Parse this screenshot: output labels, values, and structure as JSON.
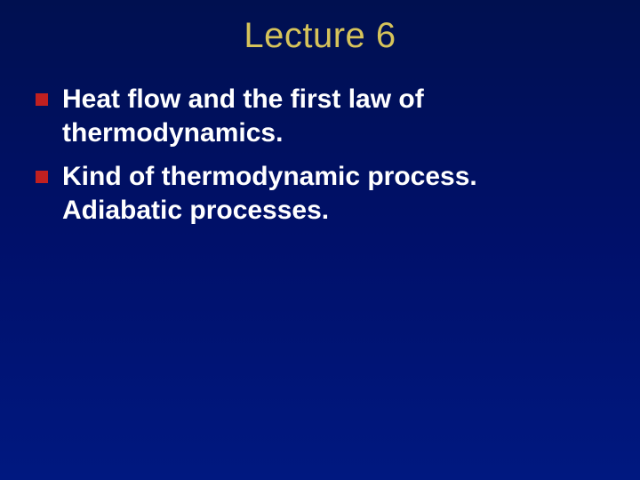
{
  "title": {
    "text": "Lecture 6",
    "color": "#d6c35a"
  },
  "bullets": {
    "marker_color": "#c02020",
    "text_color": "#ffffff",
    "items": [
      "Heat flow and the first law of thermodynamics.",
      "Kind of thermodynamic process. Adiabatic processes."
    ]
  },
  "background": {
    "gradient_top": "#001050",
    "gradient_mid": "#00106a",
    "gradient_bottom": "#001880"
  }
}
